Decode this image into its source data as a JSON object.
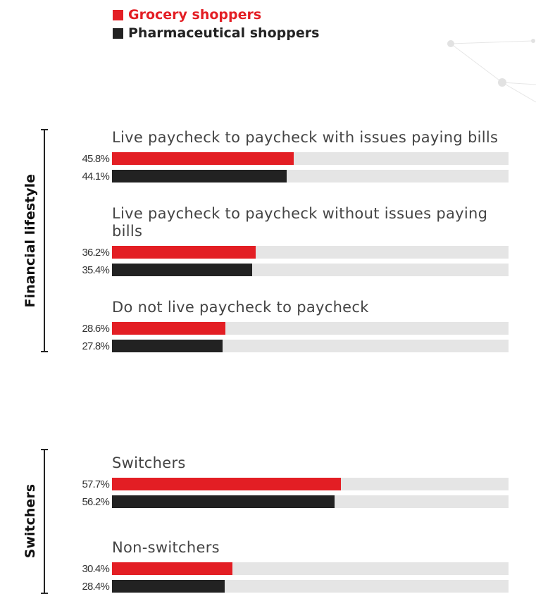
{
  "chart_data": [
    {
      "type": "bar",
      "group_label": "Financial lifestyle",
      "categories": [
        "Live paycheck to paycheck with issues paying bills",
        "Live paycheck to paycheck without issues paying bills",
        "Do not live paycheck to paycheck"
      ],
      "series": [
        {
          "name": "Grocery shoppers",
          "color": "#e31e24",
          "values": [
            45.8,
            36.2,
            28.6
          ],
          "value_labels": [
            "45.8%",
            "36.2%",
            "28.6%"
          ]
        },
        {
          "name": "Pharmaceutical shoppers",
          "color": "#222222",
          "values": [
            44.1,
            35.4,
            27.8
          ],
          "value_labels": [
            "44.1%",
            "35.4%",
            "27.8%"
          ]
        }
      ],
      "xlim": [
        0,
        100
      ],
      "track_color": "#e5e5e5"
    },
    {
      "type": "bar",
      "group_label": "Switchers",
      "categories": [
        "Switchers",
        "Non-switchers"
      ],
      "series": [
        {
          "color": "#e31e24",
          "values": [
            57.7,
            30.4
          ],
          "value_labels": [
            "57.7%",
            "30.4%"
          ]
        },
        {
          "color": "#222222",
          "values": [
            56.2,
            28.4
          ],
          "value_labels": [
            "56.2%",
            "28.4%"
          ]
        }
      ],
      "xlim": [
        0,
        100
      ],
      "track_color": "#e5e5e5"
    }
  ]
}
